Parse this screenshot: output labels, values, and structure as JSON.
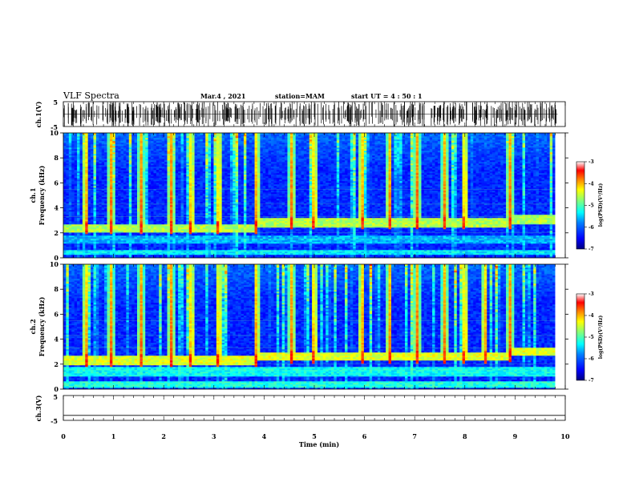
{
  "header": {
    "title": "VLF Spectra",
    "date": "Mar.4 , 2021",
    "station": "station=MAM",
    "start": "start UT = 4 : 50 : 1"
  },
  "chart_data": [
    {
      "type": "line",
      "panel": "ch1-waveform",
      "ylabel": "ch.1(V)",
      "ylim": [
        -5,
        5
      ],
      "yticks": [
        "5",
        "-5"
      ],
      "x": [
        0,
        10
      ],
      "note_series": "dense impulsive spikes across whole interval"
    },
    {
      "type": "heatmap",
      "panel": "ch1-spectrogram",
      "ylabel": "ch.1 Frequency (kHz)",
      "ylim": [
        0,
        10
      ],
      "yticks": [
        "0",
        "2",
        "4",
        "6",
        "8",
        "10"
      ],
      "xlim": [
        0,
        9.8
      ],
      "colorbar": {
        "label": "log(PSD)(V²/Hz)",
        "ticks": [
          "-3",
          "-4",
          "-5",
          "-6",
          "-7"
        ],
        "range": [
          -7,
          -3
        ]
      },
      "bands": [
        {
          "name": "band",
          "f_low": 2.0,
          "f_high": 2.8,
          "level": -4.6
        },
        {
          "name": "band",
          "f_low": 1.2,
          "f_high": 1.8,
          "level": -5.6
        },
        {
          "name": "band",
          "f_low": 0.2,
          "f_high": 0.6,
          "level": -5.4
        }
      ],
      "upper_band_step": {
        "x": [
          0,
          3.85,
          3.86,
          8.9,
          8.91,
          9.8
        ],
        "f": [
          2.4,
          2.4,
          2.8,
          2.8,
          3.1,
          3.0
        ]
      },
      "bursts_min": [
        0.45,
        0.95,
        1.55,
        2.15,
        2.55,
        3.1,
        3.85,
        4.55,
        5.0,
        5.95,
        6.5,
        7.05,
        7.6,
        8.0,
        8.9
      ]
    },
    {
      "type": "heatmap",
      "panel": "ch2-spectrogram",
      "ylabel": "ch.2 Frequency (kHz)",
      "ylim": [
        0,
        10
      ],
      "yticks": [
        "0",
        "2",
        "4",
        "6",
        "8",
        "10"
      ],
      "xlim": [
        0,
        9.8
      ],
      "colorbar": {
        "label": "log(PSD)(V²/Hz)",
        "ticks": [
          "-3",
          "-4",
          "-5",
          "-6",
          "-7"
        ],
        "range": [
          -7,
          -3
        ]
      },
      "bands": [
        {
          "name": "band",
          "f_low": 2.0,
          "f_high": 2.9,
          "level": -4.4
        },
        {
          "name": "band",
          "f_low": 1.0,
          "f_high": 1.8,
          "level": -5.3
        },
        {
          "name": "band",
          "f_low": 0.1,
          "f_high": 0.6,
          "level": -5.2
        }
      ],
      "upper_band_step": {
        "x": [
          0,
          3.85,
          3.86,
          8.9,
          8.91,
          9.8
        ],
        "f": [
          2.3,
          2.3,
          2.6,
          2.7,
          3.0,
          3.0
        ]
      },
      "bursts_min": [
        0.45,
        0.95,
        1.55,
        2.15,
        2.55,
        3.1,
        3.85,
        4.55,
        5.0,
        5.95,
        6.5,
        7.05,
        7.6,
        8.0,
        8.4,
        8.9
      ]
    },
    {
      "type": "line",
      "panel": "ch3-waveform",
      "ylabel": "ch.3(V)",
      "ylim": [
        -5,
        5
      ],
      "yticks": [
        "5",
        "-5"
      ],
      "x": [
        0,
        10
      ],
      "y": [
        -3,
        -3
      ]
    }
  ],
  "xaxis": {
    "label": "Time (min)",
    "ticks": [
      "0",
      "1",
      "2",
      "3",
      "4",
      "5",
      "6",
      "7",
      "8",
      "9",
      "10"
    ],
    "range": [
      0,
      10
    ]
  },
  "colors": {
    "cmap": [
      "#00007f",
      "#0000ff",
      "#007fff",
      "#00ffff",
      "#7fff7f",
      "#ffff00",
      "#ff7f00",
      "#ff0000",
      "#7f0000",
      "#ffffff"
    ]
  }
}
